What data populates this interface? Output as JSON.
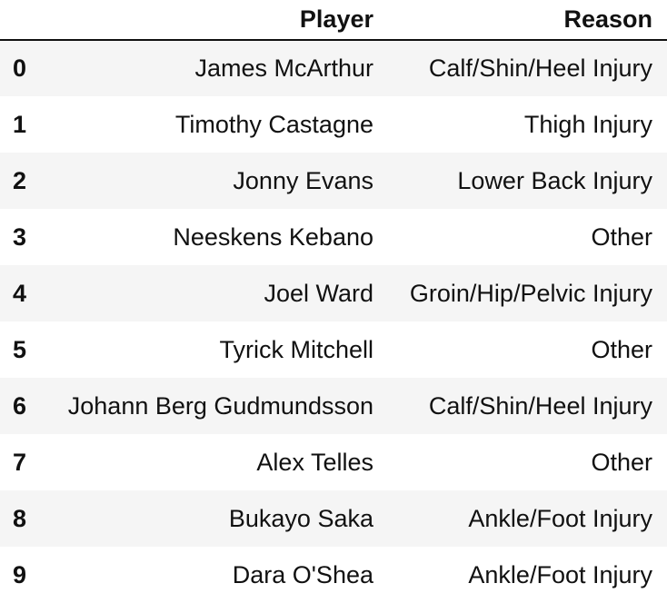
{
  "table": {
    "columns": [
      "",
      "Player",
      "Reason"
    ],
    "rows": [
      {
        "index": "0",
        "player": "James McArthur",
        "reason": "Calf/Shin/Heel Injury"
      },
      {
        "index": "1",
        "player": "Timothy Castagne",
        "reason": "Thigh Injury"
      },
      {
        "index": "2",
        "player": "Jonny Evans",
        "reason": "Lower Back Injury"
      },
      {
        "index": "3",
        "player": "Neeskens Kebano",
        "reason": "Other"
      },
      {
        "index": "4",
        "player": "Joel Ward",
        "reason": "Groin/Hip/Pelvic Injury"
      },
      {
        "index": "5",
        "player": "Tyrick Mitchell",
        "reason": "Other"
      },
      {
        "index": "6",
        "player": "Johann Berg Gudmundsson",
        "reason": "Calf/Shin/Heel Injury"
      },
      {
        "index": "7",
        "player": "Alex Telles",
        "reason": "Other"
      },
      {
        "index": "8",
        "player": "Bukayo Saka",
        "reason": "Ankle/Foot Injury"
      },
      {
        "index": "9",
        "player": "Dara O'Shea",
        "reason": "Ankle/Foot Injury"
      }
    ]
  }
}
